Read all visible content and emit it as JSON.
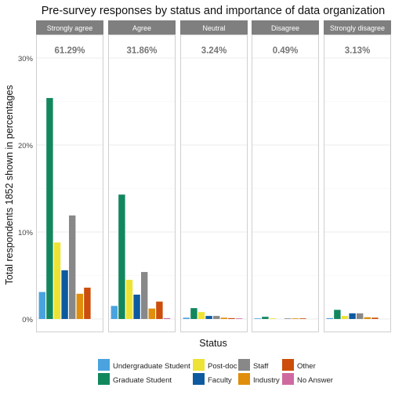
{
  "chart_data": {
    "type": "bar",
    "title": "Pre-survey responses by status and importance of data organization",
    "xlabel": "Status",
    "ylabel": "Total respondents 1852 shown in percentages",
    "ylim": [
      0,
      30
    ],
    "y_ticks": [
      "0%",
      "10%",
      "20%",
      "30%"
    ],
    "y_tick_values": [
      0,
      10,
      20,
      30
    ],
    "grid": true,
    "legend_position": "bottom",
    "series": [
      {
        "name": "Undergraduate Student",
        "color": "#4aa3df"
      },
      {
        "name": "Graduate Student",
        "color": "#12875e"
      },
      {
        "name": "Post-doc",
        "color": "#ede335"
      },
      {
        "name": "Faculty",
        "color": "#0d5aa0"
      },
      {
        "name": "Staff",
        "color": "#888888"
      },
      {
        "name": "Industry",
        "color": "#e08e0b"
      },
      {
        "name": "Other",
        "color": "#cc4e0a"
      },
      {
        "name": "No Answer",
        "color": "#cf6aa1"
      }
    ],
    "panels": [
      {
        "label": "Strongly agree",
        "total": "61.29%",
        "values": [
          3.1,
          25.4,
          8.8,
          5.6,
          11.9,
          2.9,
          3.6,
          0
        ]
      },
      {
        "label": "Agree",
        "total": "31.86%",
        "values": [
          1.5,
          14.3,
          4.5,
          2.8,
          5.4,
          1.2,
          2.0,
          0.1
        ]
      },
      {
        "label": "Neutral",
        "total": "3.24%",
        "values": [
          0.15,
          1.25,
          0.8,
          0.35,
          0.35,
          0.15,
          0.1,
          0.05
        ]
      },
      {
        "label": "Disagree",
        "total": "0.49%",
        "values": [
          0.05,
          0.25,
          0.05,
          0,
          0.03,
          0.05,
          0.06,
          0
        ]
      },
      {
        "label": "Strongly disagree",
        "total": "3.13%",
        "values": [
          0.1,
          1.05,
          0.35,
          0.65,
          0.65,
          0.2,
          0.15,
          0
        ]
      }
    ]
  }
}
